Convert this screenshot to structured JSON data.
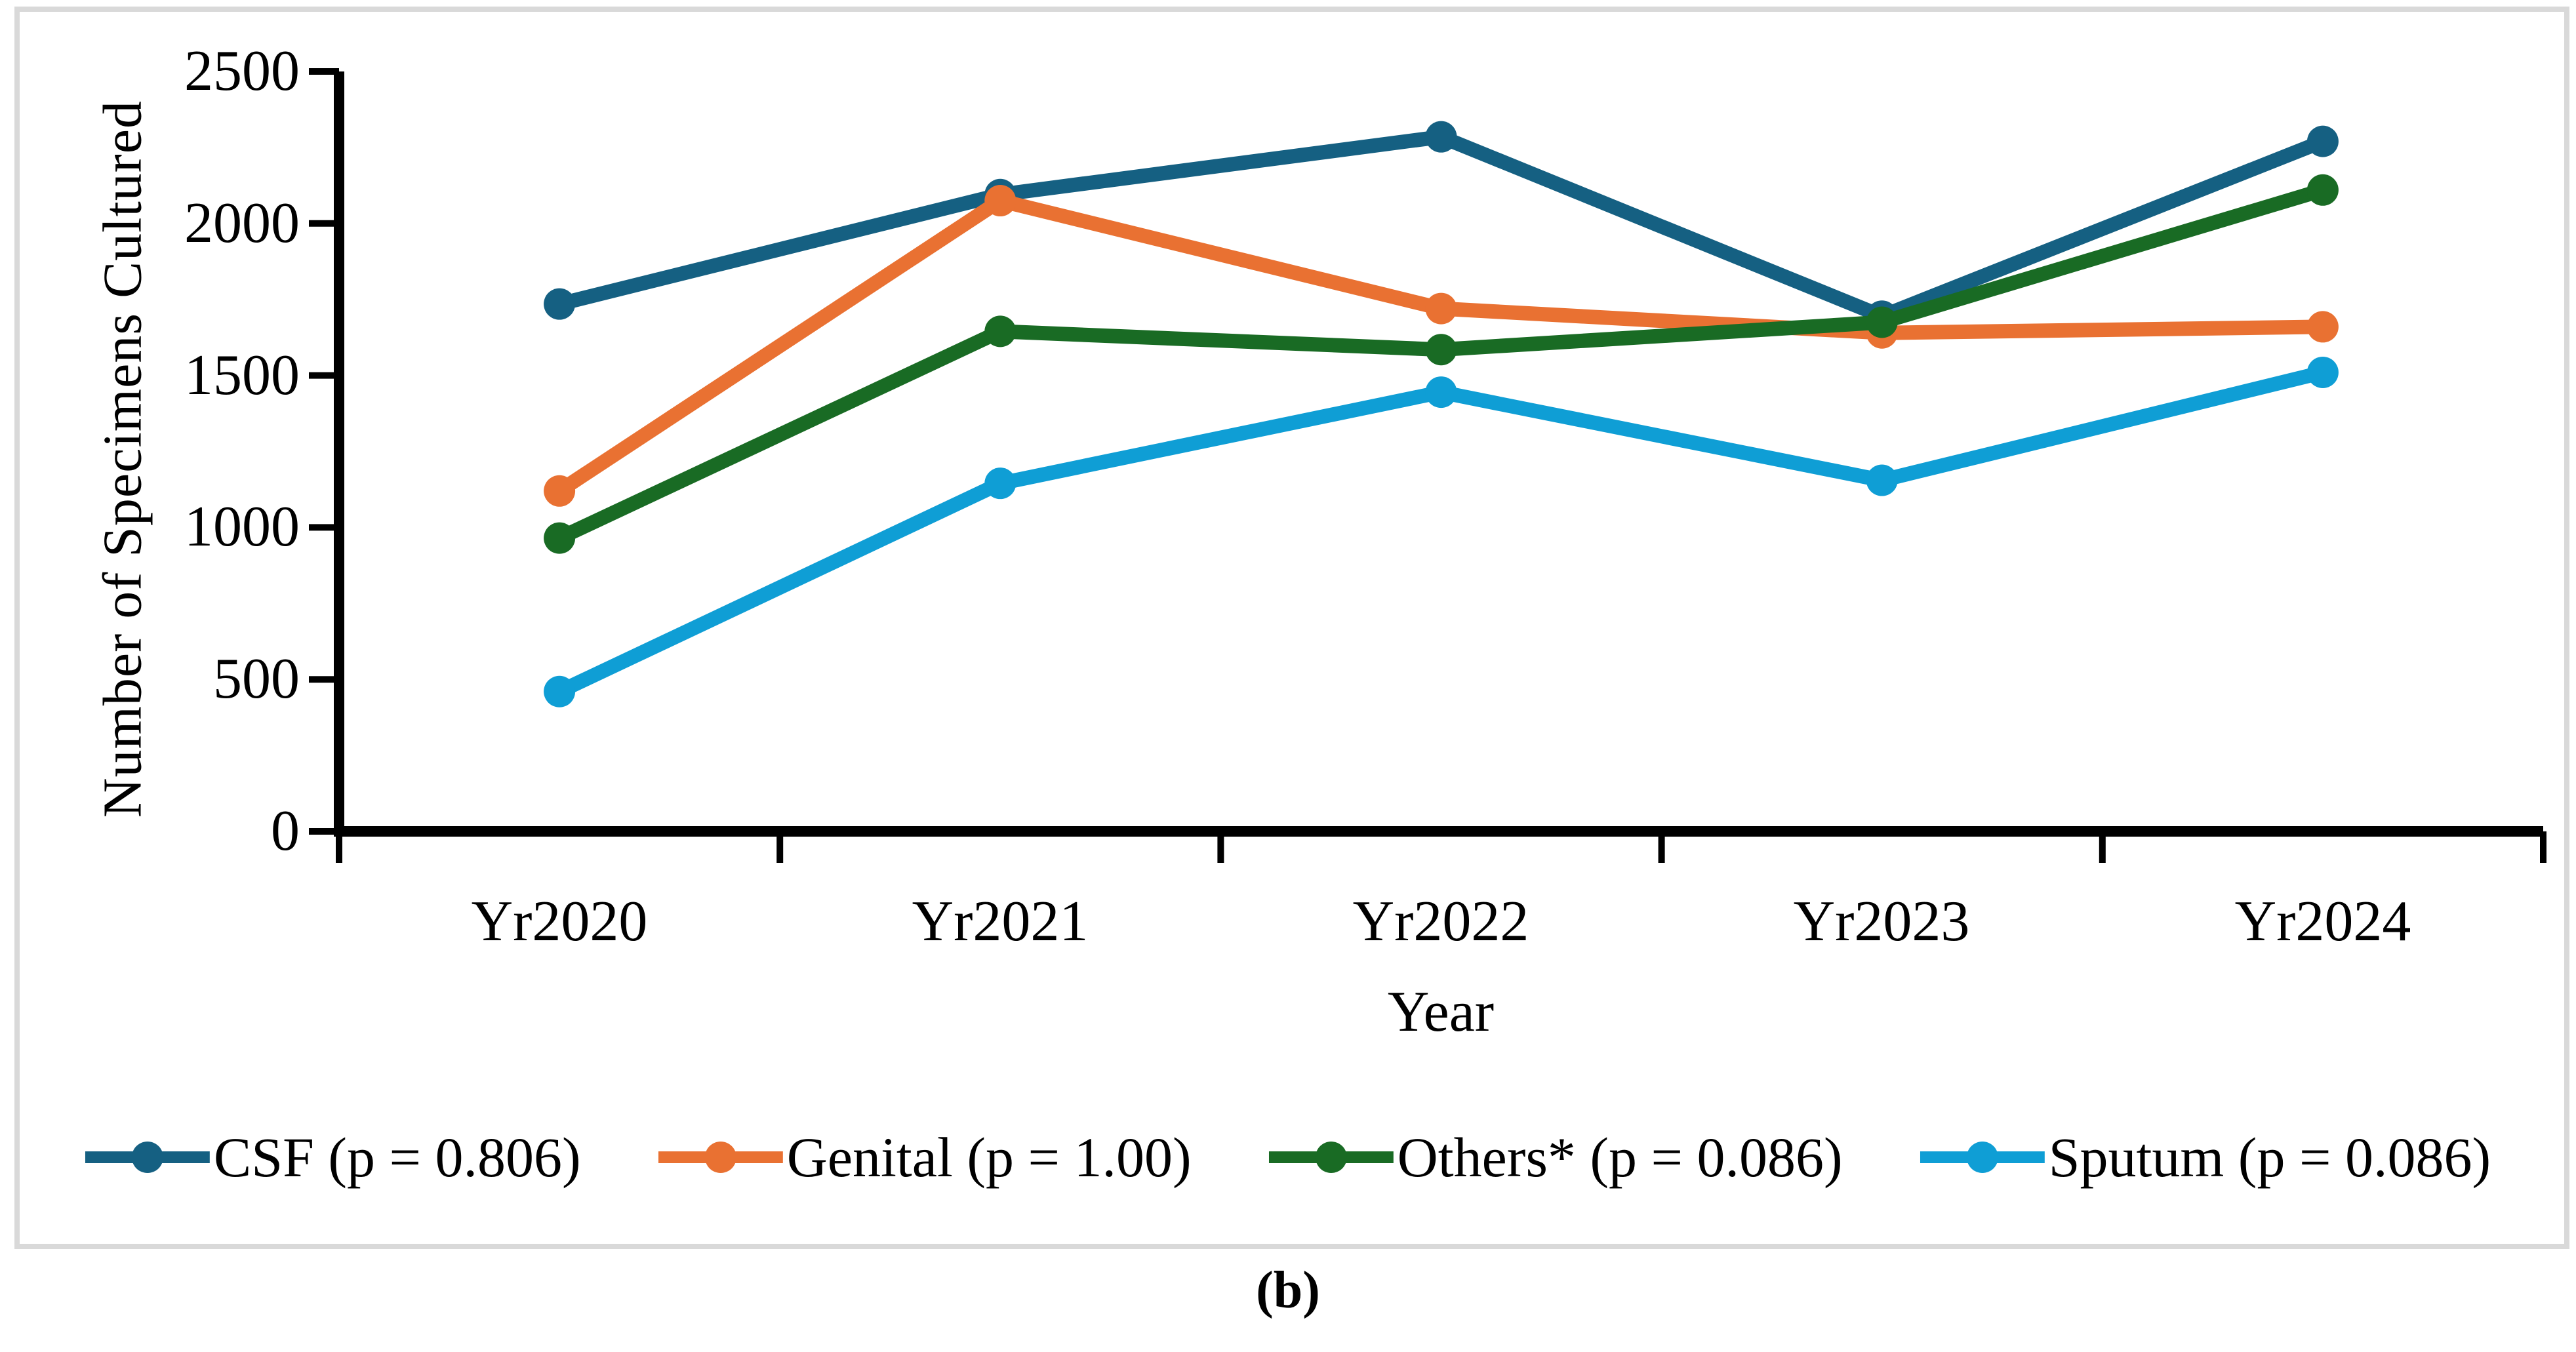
{
  "figure": {
    "caption": "(b)",
    "frame_color": "#D9D9D9",
    "background": "#FFFFFF"
  },
  "chart_data": {
    "type": "line",
    "title": "",
    "xlabel": "Year",
    "ylabel": "Number of Specimens Cultured",
    "categories": [
      "Yr2020",
      "Yr2021",
      "Yr2022",
      "Yr2023",
      "Yr2024"
    ],
    "ylim": [
      0,
      2500
    ],
    "ytick_interval": 500,
    "yticklabels": [
      "0",
      "500",
      "1000",
      "1500",
      "2000",
      "2500"
    ],
    "grid": false,
    "legend_position": "bottom",
    "marker": "circle",
    "axis_color": "#000000",
    "series": [
      {
        "name": "CSF (p = 0.806)",
        "color": "#156082",
        "values": [
          1735,
          2095,
          2285,
          1695,
          2270
        ]
      },
      {
        "name": "Genital (p = 1.00)",
        "color": "#E97132",
        "values": [
          1120,
          2075,
          1720,
          1640,
          1660
        ]
      },
      {
        "name": "Others* (p = 0.086)",
        "color": "#196B24",
        "values": [
          965,
          1645,
          1585,
          1675,
          2110
        ]
      },
      {
        "name": "Sputum (p = 0.086)",
        "color": "#0F9ED5",
        "values": [
          460,
          1145,
          1445,
          1155,
          1510
        ]
      }
    ]
  }
}
